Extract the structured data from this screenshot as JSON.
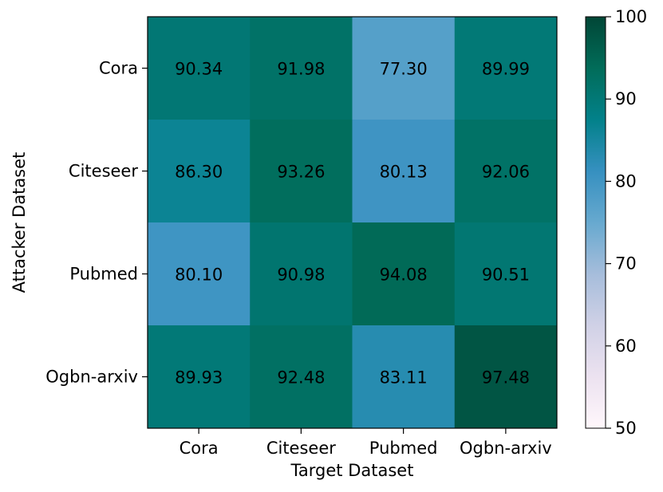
{
  "chart_data": {
    "type": "heatmap",
    "title": "",
    "xlabel": "Target Dataset",
    "ylabel": "Attacker Dataset",
    "x_categories": [
      "Cora",
      "Citeseer",
      "Pubmed",
      "Ogbn-arxiv"
    ],
    "y_categories": [
      "Cora",
      "Citeseer",
      "Pubmed",
      "Ogbn-arxiv"
    ],
    "values": [
      [
        90.34,
        91.98,
        77.3,
        89.99
      ],
      [
        86.3,
        93.26,
        80.13,
        92.06
      ],
      [
        80.1,
        90.98,
        94.08,
        90.51
      ],
      [
        89.93,
        92.48,
        83.11,
        97.48
      ]
    ],
    "value_labels": [
      [
        "90.34",
        "91.98",
        "77.30",
        "89.99"
      ],
      [
        "86.30",
        "93.26",
        "80.13",
        "92.06"
      ],
      [
        "80.10",
        "90.98",
        "94.08",
        "90.51"
      ],
      [
        "89.93",
        "92.48",
        "83.11",
        "97.48"
      ]
    ],
    "colorbar": {
      "range": [
        50,
        100
      ],
      "ticks": [
        "50",
        "60",
        "70",
        "80",
        "90",
        "100"
      ],
      "colormap": "PuBuGn"
    },
    "color_stops": [
      {
        "v": 50,
        "c": "#fff7fb"
      },
      {
        "v": 56.25,
        "c": "#ece2f0"
      },
      {
        "v": 62.5,
        "c": "#d0d1e6"
      },
      {
        "v": 68.75,
        "c": "#a6bddb"
      },
      {
        "v": 75,
        "c": "#67a9cf"
      },
      {
        "v": 81.25,
        "c": "#3690c0"
      },
      {
        "v": 87.5,
        "c": "#02818a"
      },
      {
        "v": 93.75,
        "c": "#016c59"
      },
      {
        "v": 100,
        "c": "#014636"
      }
    ]
  }
}
